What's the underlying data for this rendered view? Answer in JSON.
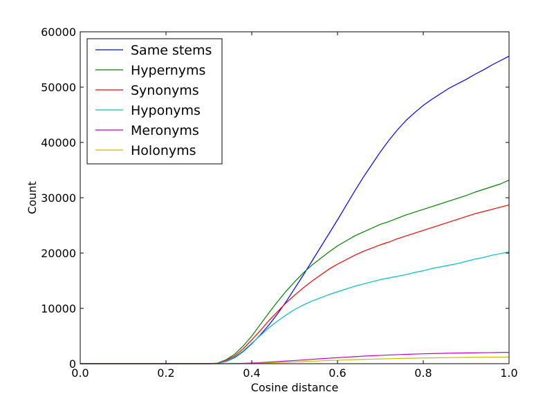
{
  "chart_data": {
    "type": "line",
    "xlabel": "Cosine distance",
    "ylabel": "Count",
    "xlim": [
      0.0,
      1.0
    ],
    "ylim": [
      0,
      60000
    ],
    "x_ticks": [
      0.0,
      0.2,
      0.4,
      0.6,
      0.8,
      1.0
    ],
    "x_tick_labels": [
      "0.0",
      "0.2",
      "0.4",
      "0.6",
      "0.8",
      "1.0"
    ],
    "y_ticks": [
      0,
      10000,
      20000,
      30000,
      40000,
      50000,
      60000
    ],
    "y_tick_labels": [
      "0",
      "10000",
      "20000",
      "30000",
      "40000",
      "50000",
      "60000"
    ],
    "grid": false,
    "legend_position": "top-left",
    "x": [
      0.0,
      0.1,
      0.2,
      0.3,
      0.32,
      0.34,
      0.36,
      0.38,
      0.4,
      0.42,
      0.44,
      0.46,
      0.48,
      0.5,
      0.52,
      0.54,
      0.56,
      0.58,
      0.6,
      0.62,
      0.64,
      0.66,
      0.68,
      0.7,
      0.72,
      0.74,
      0.76,
      0.78,
      0.8,
      0.82,
      0.84,
      0.86,
      0.88,
      0.9,
      0.92,
      0.94,
      0.96,
      0.98,
      1.0
    ],
    "series": [
      {
        "name": "Same stems",
        "color": "#0000ff",
        "values": [
          0,
          0,
          0,
          0,
          50,
          400,
          1100,
          2200,
          3600,
          5200,
          7000,
          9000,
          11200,
          13600,
          16000,
          18500,
          21000,
          23500,
          26000,
          28600,
          31200,
          33700,
          36000,
          38300,
          40400,
          42300,
          44000,
          45400,
          46700,
          47800,
          48800,
          49800,
          50600,
          51400,
          52300,
          53100,
          54000,
          54800,
          55600
        ]
      },
      {
        "name": "Hypernyms",
        "color": "#008000",
        "values": [
          0,
          0,
          0,
          0,
          100,
          700,
          1700,
          3200,
          5000,
          7100,
          9200,
          11200,
          13100,
          14800,
          16400,
          17800,
          19000,
          20200,
          21300,
          22200,
          23100,
          23800,
          24500,
          25200,
          25700,
          26300,
          26900,
          27400,
          27900,
          28400,
          28900,
          29400,
          29900,
          30400,
          31000,
          31500,
          32000,
          32500,
          33200
        ]
      },
      {
        "name": "Synonyms",
        "color": "#ff0000",
        "values": [
          0,
          0,
          0,
          0,
          80,
          600,
          1400,
          2700,
          4300,
          6000,
          7800,
          9400,
          11000,
          12400,
          13700,
          14900,
          16000,
          17100,
          18000,
          18800,
          19600,
          20300,
          20900,
          21500,
          22000,
          22600,
          23100,
          23600,
          24100,
          24600,
          25100,
          25600,
          26100,
          26600,
          27100,
          27500,
          27900,
          28300,
          28700
        ]
      },
      {
        "name": "Hyponyms",
        "color": "#00bfbf",
        "values": [
          0,
          0,
          0,
          0,
          60,
          450,
          1200,
          2300,
          3700,
          5100,
          6500,
          7700,
          8800,
          9800,
          10600,
          11300,
          11900,
          12500,
          13000,
          13500,
          14000,
          14400,
          14800,
          15200,
          15500,
          15800,
          16100,
          16500,
          16800,
          17200,
          17500,
          17800,
          18100,
          18500,
          18900,
          19200,
          19600,
          19900,
          20200
        ]
      },
      {
        "name": "Meronyms",
        "color": "#bf00bf",
        "values": [
          0,
          0,
          0,
          0,
          0,
          10,
          30,
          70,
          130,
          200,
          280,
          380,
          480,
          570,
          680,
          790,
          890,
          990,
          1080,
          1180,
          1270,
          1360,
          1440,
          1510,
          1570,
          1630,
          1690,
          1740,
          1790,
          1830,
          1860,
          1890,
          1920,
          1950,
          1970,
          1990,
          2010,
          2030,
          2050
        ]
      },
      {
        "name": "Holonyms",
        "color": "#bfbf00",
        "values": [
          0,
          0,
          0,
          0,
          0,
          5,
          15,
          35,
          70,
          110,
          160,
          210,
          270,
          330,
          390,
          450,
          510,
          570,
          620,
          680,
          730,
          780,
          820,
          860,
          900,
          940,
          970,
          1000,
          1030,
          1050,
          1080,
          1100,
          1120,
          1140,
          1160,
          1170,
          1180,
          1190,
          1200
        ]
      }
    ]
  }
}
